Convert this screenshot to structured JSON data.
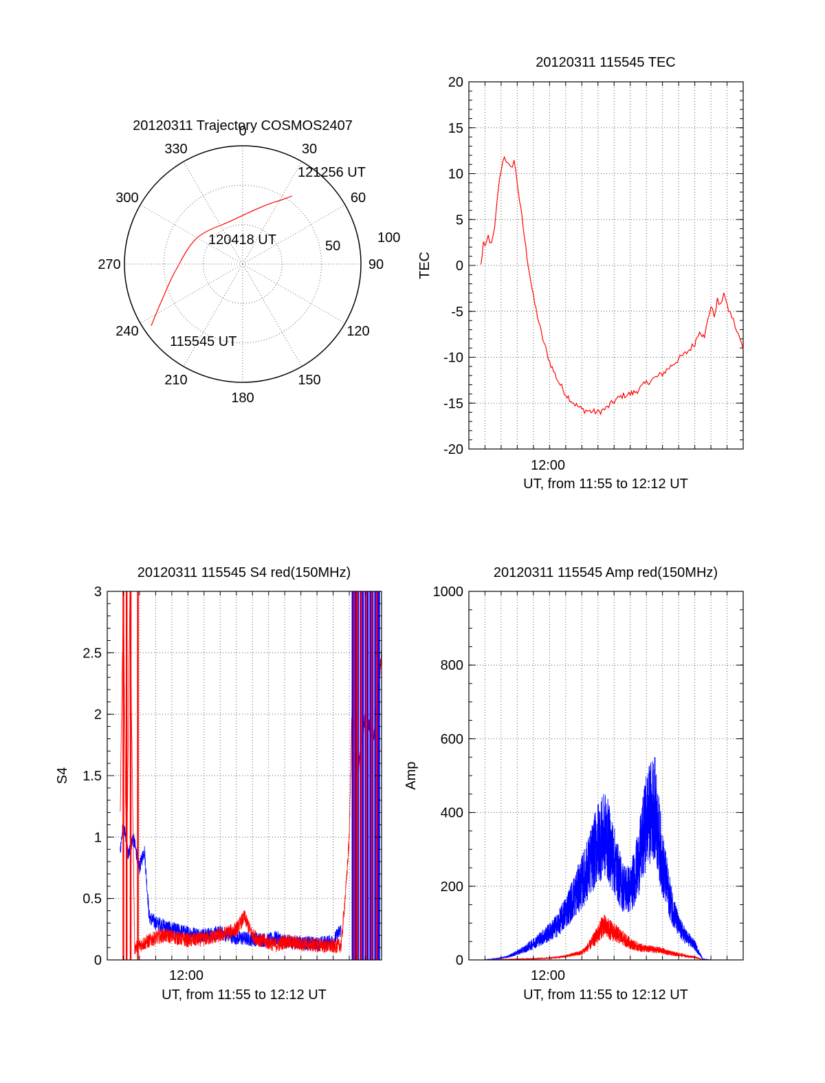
{
  "colors": {
    "red": "#ff0000",
    "blue": "#0000ff"
  },
  "chart_data": [
    {
      "type": "polar",
      "title": "20120311 Trajectory COSMOS2407",
      "azimuth_labels": [
        "0",
        "30",
        "60",
        "90",
        "120",
        "150",
        "180",
        "210",
        "240",
        "270",
        "300",
        "330"
      ],
      "ring_labels": [
        "50",
        "100"
      ],
      "elevation_rings": [
        30,
        60
      ],
      "trajectory": {
        "points_az_zenith": [
          [
            236,
            84
          ],
          [
            247,
            66
          ],
          [
            265,
            51
          ],
          [
            300,
            40
          ],
          [
            345,
            34
          ],
          [
            20,
            47
          ],
          [
            32,
            58
          ],
          [
            36,
            64
          ]
        ],
        "labels": [
          "115545 UT",
          "120418 UT",
          "121256 UT"
        ]
      }
    },
    {
      "type": "line",
      "title": "20120311 115545 TEC",
      "ylabel": "TEC",
      "xlabel": "UT, from 11:55 to 12:12 UT",
      "xtick_label": "12:00",
      "ylim": [
        -20,
        20
      ],
      "yticks": [
        "20",
        "15",
        "10",
        "5",
        "0",
        "-5",
        "-10",
        "-15",
        "-20"
      ],
      "xlim_min": [
        715,
        732
      ],
      "series": [
        {
          "name": "TEC",
          "color": "red",
          "x": [
            715.75,
            715.9,
            716.0,
            716.2,
            716.4,
            716.6,
            716.8,
            717.0,
            717.2,
            717.4,
            717.6,
            717.8,
            718.0,
            718.3,
            718.6,
            719.0,
            719.5,
            720.0,
            720.5,
            721.0,
            721.5,
            722.0,
            722.5,
            723.0,
            723.5,
            724.0,
            724.5,
            725.0,
            725.3,
            725.6,
            726.0,
            726.5,
            727.0,
            727.5,
            728.0,
            728.5,
            729.0,
            729.3,
            729.6,
            729.8,
            730.0,
            730.2,
            730.4,
            730.6,
            730.8,
            731.0,
            731.2,
            731.4,
            731.6,
            731.8,
            732.0
          ],
          "y": [
            0,
            2.5,
            1.8,
            3.2,
            2.2,
            4.0,
            8.0,
            10.5,
            12.0,
            11.0,
            10.5,
            11.5,
            9.0,
            5.0,
            1.0,
            -3.5,
            -7.5,
            -10.5,
            -12.5,
            -14.0,
            -15.0,
            -15.7,
            -15.9,
            -16.0,
            -15.6,
            -14.8,
            -14.2,
            -14.0,
            -13.8,
            -13.4,
            -12.8,
            -12.3,
            -11.8,
            -11.0,
            -10.2,
            -9.5,
            -8.5,
            -7.0,
            -8.0,
            -5.8,
            -4.5,
            -5.5,
            -3.8,
            -4.5,
            -2.8,
            -4.5,
            -5.2,
            -6.0,
            -7.2,
            -8.0,
            -9.2
          ]
        }
      ]
    },
    {
      "type": "line",
      "title": "20120311 115545 S4 red(150MHz)",
      "ylabel": "S4",
      "xlabel": "UT, from 11:55 to 12:12 UT",
      "xtick_label": "12:00",
      "ylim": [
        0,
        3
      ],
      "yticks": [
        "3",
        "2.5",
        "2",
        "1.5",
        "1",
        "0.5",
        "0"
      ],
      "xlim_min": [
        715,
        732
      ],
      "series": [
        {
          "name": "S4 red",
          "color": "red",
          "x": [
            715.8,
            716.0,
            716.2,
            716.4,
            716.7,
            717.0,
            717.5,
            718.0,
            718.5,
            719.0,
            720.0,
            721.0,
            722.0,
            723.0,
            723.5,
            724.0,
            724.5,
            725.0,
            725.5,
            726.0,
            727.0,
            728.0,
            729.0,
            729.5,
            729.8,
            730.0,
            730.2,
            730.5,
            731.0,
            731.5,
            732.0
          ],
          "y": [
            1.2,
            3.0,
            0.6,
            3.0,
            0.1,
            0.12,
            0.15,
            0.18,
            0.2,
            0.19,
            0.16,
            0.17,
            0.2,
            0.25,
            0.35,
            0.2,
            0.16,
            0.14,
            0.12,
            0.15,
            0.13,
            0.12,
            0.11,
            0.12,
            0.6,
            1.0,
            2.3,
            1.5,
            2.0,
            1.8,
            2.5
          ]
        },
        {
          "name": "S4 blue",
          "color": "blue",
          "x": [
            715.8,
            716.0,
            716.3,
            716.6,
            717.0,
            717.3,
            717.6,
            718.0,
            718.5,
            719.0,
            720.0,
            721.0,
            722.0,
            723.0,
            724.0,
            725.0,
            725.5,
            726.0,
            727.0,
            728.0,
            729.0,
            729.5
          ],
          "y": [
            0.9,
            1.1,
            0.85,
            1.0,
            0.75,
            0.9,
            0.35,
            0.3,
            0.28,
            0.25,
            0.22,
            0.2,
            0.22,
            0.18,
            0.17,
            0.16,
            0.18,
            0.15,
            0.14,
            0.13,
            0.15,
            0.25
          ]
        }
      ]
    },
    {
      "type": "line",
      "title": "20120311 115545 Amp red(150MHz)",
      "ylabel": "Amp",
      "xlabel": "UT, from 11:55 to 12:12 UT",
      "xtick_label": "12:00",
      "ylim": [
        0,
        1000
      ],
      "yticks": [
        "1000",
        "800",
        "600",
        "400",
        "200",
        "0"
      ],
      "xlim_min": [
        715,
        732
      ],
      "series": [
        {
          "name": "Amp blue",
          "color": "blue",
          "x": [
            715.8,
            716.5,
            717.0,
            717.5,
            718.0,
            718.5,
            719.0,
            719.5,
            720.0,
            720.5,
            721.0,
            721.5,
            722.0,
            722.5,
            723.0,
            723.5,
            724.0,
            724.5,
            725.0,
            725.5,
            726.0,
            726.5,
            727.0,
            727.5,
            728.0,
            728.5,
            729.0,
            729.5,
            730.0,
            730.5,
            731.0,
            731.5,
            732.0
          ],
          "y": [
            0,
            2,
            5,
            10,
            20,
            30,
            45,
            60,
            75,
            95,
            130,
            170,
            210,
            260,
            320,
            340,
            270,
            200,
            190,
            260,
            380,
            420,
            260,
            160,
            90,
            60,
            40,
            2,
            0,
            0,
            0,
            0,
            0
          ]
        },
        {
          "name": "Amp red",
          "color": "red",
          "x": [
            715.8,
            717.0,
            718.0,
            719.0,
            720.0,
            721.0,
            722.0,
            722.5,
            723.0,
            723.3,
            723.6,
            724.0,
            724.5,
            725.0,
            725.5,
            726.0,
            726.5,
            727.0,
            727.5,
            728.0,
            728.5,
            729.0,
            729.5,
            730.0,
            731.0,
            732.0
          ],
          "y": [
            0,
            1,
            2,
            3,
            5,
            10,
            20,
            40,
            70,
            95,
            85,
            75,
            60,
            45,
            35,
            30,
            28,
            25,
            18,
            15,
            10,
            8,
            0,
            0,
            0,
            0
          ]
        }
      ]
    }
  ]
}
